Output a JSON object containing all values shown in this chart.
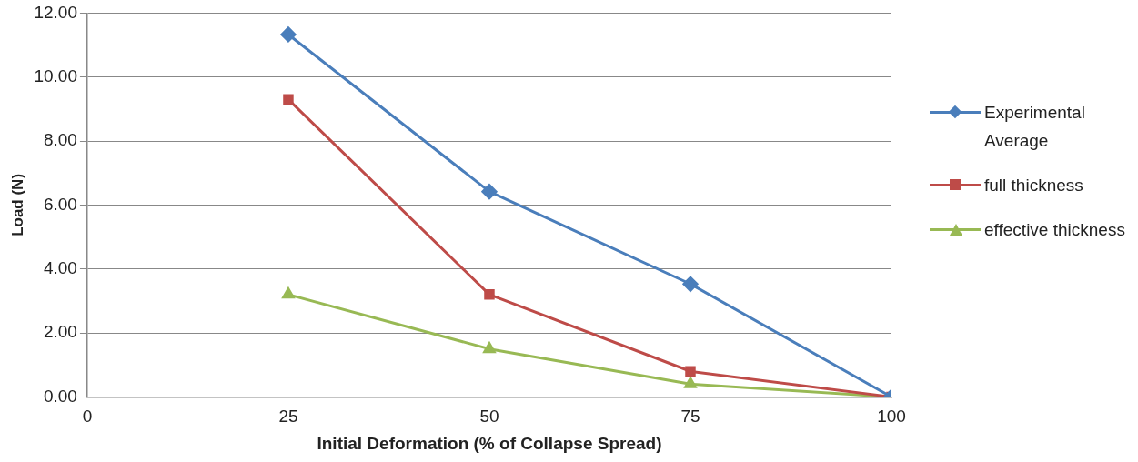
{
  "chart_data": {
    "type": "line",
    "xlabel": "Initial Deformation (% of Collapse Spread)",
    "ylabel": "Load (N)",
    "x": [
      25,
      50,
      75,
      100
    ],
    "series": [
      {
        "name": "Experimental Average",
        "color": "#4a7ebb",
        "marker": "diamond",
        "values": [
          11.33,
          6.42,
          3.53,
          0
        ]
      },
      {
        "name": "full thickness",
        "color": "#be4b48",
        "marker": "square",
        "values": [
          9.3,
          3.2,
          0.8,
          0
        ]
      },
      {
        "name": "effective thickness",
        "color": "#98b954",
        "marker": "triangle",
        "values": [
          3.2,
          1.5,
          0.4,
          0
        ]
      }
    ],
    "xlim": [
      0,
      100
    ],
    "xticks": [
      0,
      25,
      50,
      75,
      100
    ],
    "ylim": [
      0,
      12
    ],
    "yticks": [
      {
        "value": 0,
        "label": "0.00"
      },
      {
        "value": 2,
        "label": "2.00"
      },
      {
        "value": 4,
        "label": "4.00"
      },
      {
        "value": 6,
        "label": "6.00"
      },
      {
        "value": 8,
        "label": "8.00"
      },
      {
        "value": 10,
        "label": "10.00"
      },
      {
        "value": 12,
        "label": "12.00"
      }
    ],
    "grid": "y",
    "legend": "right",
    "line_style": "solid"
  }
}
